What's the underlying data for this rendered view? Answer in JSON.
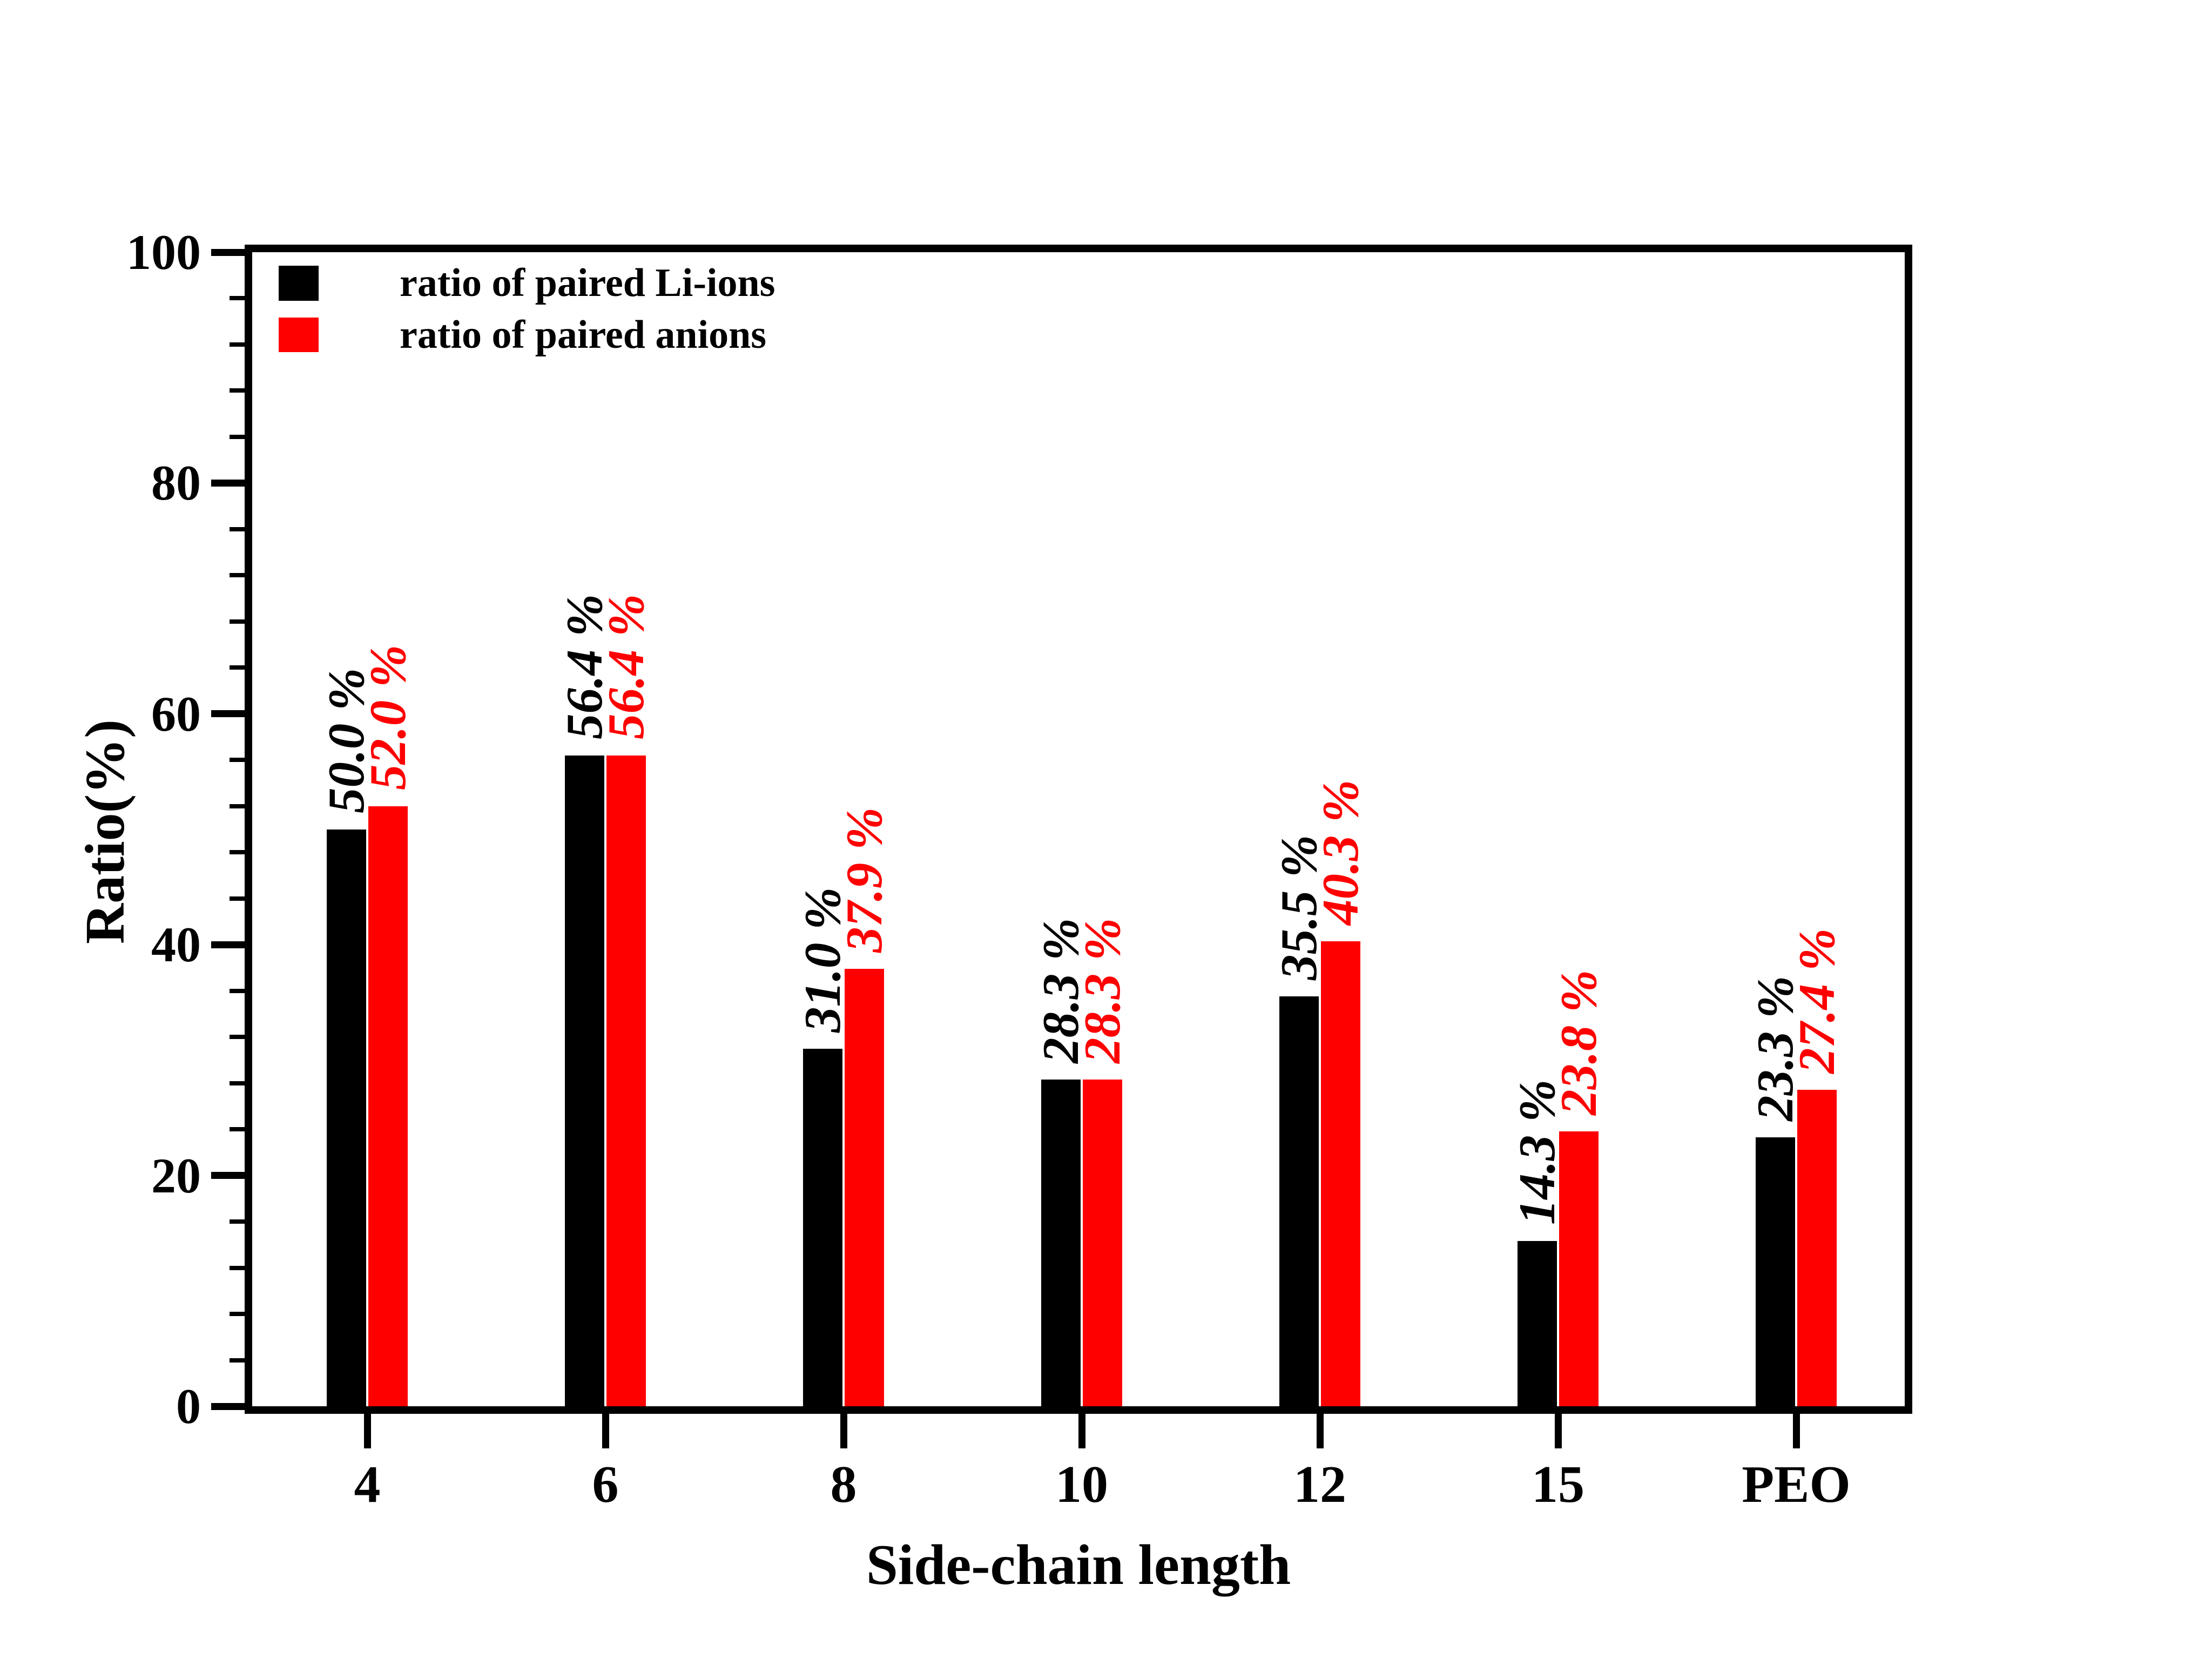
{
  "chart_data": {
    "type": "bar",
    "title": "",
    "xlabel": "Side-chain length",
    "ylabel": "Ratio(%)",
    "categories": [
      "4",
      "6",
      "8",
      "10",
      "12",
      "15",
      "PEO"
    ],
    "series": [
      {
        "name": "ratio of paired Li-ions",
        "color": "#000000",
        "values": [
          50.0,
          56.4,
          31.0,
          28.3,
          35.5,
          14.3,
          23.3
        ],
        "value_labels": [
          "50.0 %",
          "56.4 %",
          "31.0 %",
          "28.3 %",
          "35.5 %",
          "14.3 %",
          "23.3 %"
        ]
      },
      {
        "name": "ratio of paired anions",
        "color": "#ff0000",
        "values": [
          52.0,
          56.4,
          37.9,
          28.3,
          40.3,
          23.8,
          27.4
        ],
        "value_labels": [
          "52.0 %",
          "56.4 %",
          "37.9 %",
          "28.3 %",
          "40.3 %",
          "23.8 %",
          "27.4 %"
        ]
      }
    ],
    "ylim": [
      0,
      100
    ],
    "ytick_values": [
      0,
      20,
      40,
      60,
      80,
      100
    ],
    "ytick_labels": [
      "0",
      "20",
      "40",
      "60",
      "80",
      "100"
    ],
    "minor_tick_step": 4,
    "grid": false,
    "legend_position": "upper-left"
  },
  "colors": {
    "series_black": "#000000",
    "series_red": "#ff0000",
    "text": "#000000",
    "background": "#ffffff"
  }
}
